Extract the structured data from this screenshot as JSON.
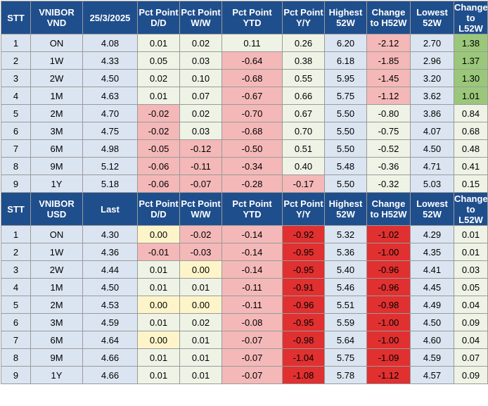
{
  "colors": {
    "header_bg": "#1f4e8c",
    "stripe": "#dbe5f1",
    "neutral": "#eef3e6",
    "light_red": "#f4b8b8",
    "red": "#e03030",
    "light_green": "#c6dfa8",
    "green": "#9bc77a",
    "light_yellow": "#fdf5c9"
  },
  "vnd": {
    "headers": [
      "STT",
      "VNIBOR VND",
      "25/3/2025",
      "Pct Point D/D",
      "Pct Point W/W",
      "Pct Point YTD",
      "Pct Point Y/Y",
      "Highest 52W",
      "Change to H52W",
      "Lowest 52W",
      "Change to L52W"
    ],
    "rows": [
      {
        "stt": "1",
        "tenor": "ON",
        "value": "4.08",
        "dd": "0.01",
        "ww": "0.02",
        "ytd": "0.11",
        "yy": "0.26",
        "high": "6.20",
        "chg_high": "-2.12",
        "low": "2.70",
        "chg_low": "1.38"
      },
      {
        "stt": "2",
        "tenor": "1W",
        "value": "4.33",
        "dd": "0.05",
        "ww": "0.03",
        "ytd": "-0.64",
        "yy": "0.38",
        "high": "6.18",
        "chg_high": "-1.85",
        "low": "2.96",
        "chg_low": "1.37"
      },
      {
        "stt": "3",
        "tenor": "2W",
        "value": "4.50",
        "dd": "0.02",
        "ww": "0.10",
        "ytd": "-0.68",
        "yy": "0.55",
        "high": "5.95",
        "chg_high": "-1.45",
        "low": "3.20",
        "chg_low": "1.30"
      },
      {
        "stt": "4",
        "tenor": "1M",
        "value": "4.63",
        "dd": "0.01",
        "ww": "0.07",
        "ytd": "-0.67",
        "yy": "0.66",
        "high": "5.75",
        "chg_high": "-1.12",
        "low": "3.62",
        "chg_low": "1.01"
      },
      {
        "stt": "5",
        "tenor": "2M",
        "value": "4.70",
        "dd": "-0.02",
        "ww": "0.02",
        "ytd": "-0.70",
        "yy": "0.67",
        "high": "5.50",
        "chg_high": "-0.80",
        "low": "3.86",
        "chg_low": "0.84"
      },
      {
        "stt": "6",
        "tenor": "3M",
        "value": "4.75",
        "dd": "-0.02",
        "ww": "0.03",
        "ytd": "-0.68",
        "yy": "0.70",
        "high": "5.50",
        "chg_high": "-0.75",
        "low": "4.07",
        "chg_low": "0.68"
      },
      {
        "stt": "7",
        "tenor": "6M",
        "value": "4.98",
        "dd": "-0.05",
        "ww": "-0.12",
        "ytd": "-0.50",
        "yy": "0.51",
        "high": "5.50",
        "chg_high": "-0.52",
        "low": "4.50",
        "chg_low": "0.48"
      },
      {
        "stt": "8",
        "tenor": "9M",
        "value": "5.12",
        "dd": "-0.06",
        "ww": "-0.11",
        "ytd": "-0.34",
        "yy": "0.40",
        "high": "5.48",
        "chg_high": "-0.36",
        "low": "4.71",
        "chg_low": "0.41"
      },
      {
        "stt": "9",
        "tenor": "1Y",
        "value": "5.18",
        "dd": "-0.06",
        "ww": "-0.07",
        "ytd": "-0.28",
        "yy": "-0.17",
        "high": "5.50",
        "chg_high": "-0.32",
        "low": "5.03",
        "chg_low": "0.15"
      }
    ]
  },
  "usd": {
    "headers": [
      "STT",
      "VNIBOR USD",
      "Last",
      "Pct Point D/D",
      "Pct Point W/W",
      "Pct Point YTD",
      "Pct Point Y/Y",
      "Highest 52W",
      "Change to H52W",
      "Lowest 52W",
      "Change to L52W"
    ],
    "rows": [
      {
        "stt": "1",
        "tenor": "ON",
        "value": "4.30",
        "dd": "0.00",
        "ww": "-0.02",
        "ytd": "-0.14",
        "yy": "-0.92",
        "high": "5.32",
        "chg_high": "-1.02",
        "low": "4.29",
        "chg_low": "0.01"
      },
      {
        "stt": "2",
        "tenor": "1W",
        "value": "4.36",
        "dd": "-0.01",
        "ww": "-0.03",
        "ytd": "-0.14",
        "yy": "-0.95",
        "high": "5.36",
        "chg_high": "-1.00",
        "low": "4.35",
        "chg_low": "0.01"
      },
      {
        "stt": "3",
        "tenor": "2W",
        "value": "4.44",
        "dd": "0.01",
        "ww": "0.00",
        "ytd": "-0.14",
        "yy": "-0.95",
        "high": "5.40",
        "chg_high": "-0.96",
        "low": "4.41",
        "chg_low": "0.03"
      },
      {
        "stt": "4",
        "tenor": "1M",
        "value": "4.50",
        "dd": "0.01",
        "ww": "0.01",
        "ytd": "-0.11",
        "yy": "-0.91",
        "high": "5.46",
        "chg_high": "-0.96",
        "low": "4.45",
        "chg_low": "0.05"
      },
      {
        "stt": "5",
        "tenor": "2M",
        "value": "4.53",
        "dd": "0.00",
        "ww": "0.00",
        "ytd": "-0.11",
        "yy": "-0.96",
        "high": "5.51",
        "chg_high": "-0.98",
        "low": "4.49",
        "chg_low": "0.04"
      },
      {
        "stt": "6",
        "tenor": "3M",
        "value": "4.59",
        "dd": "0.01",
        "ww": "0.02",
        "ytd": "-0.08",
        "yy": "-0.95",
        "high": "5.59",
        "chg_high": "-1.00",
        "low": "4.50",
        "chg_low": "0.09"
      },
      {
        "stt": "7",
        "tenor": "6M",
        "value": "4.64",
        "dd": "0.00",
        "ww": "0.01",
        "ytd": "-0.07",
        "yy": "-0.98",
        "high": "5.64",
        "chg_high": "-1.00",
        "low": "4.60",
        "chg_low": "0.04"
      },
      {
        "stt": "8",
        "tenor": "9M",
        "value": "4.66",
        "dd": "0.01",
        "ww": "0.01",
        "ytd": "-0.07",
        "yy": "-1.04",
        "high": "5.75",
        "chg_high": "-1.09",
        "low": "4.59",
        "chg_low": "0.07"
      },
      {
        "stt": "9",
        "tenor": "1Y",
        "value": "4.66",
        "dd": "0.01",
        "ww": "0.01",
        "ytd": "-0.07",
        "yy": "-1.08",
        "high": "5.78",
        "chg_high": "-1.12",
        "low": "4.57",
        "chg_low": "0.09"
      }
    ]
  }
}
